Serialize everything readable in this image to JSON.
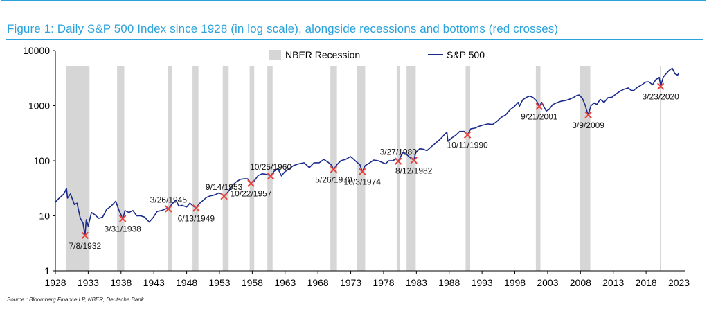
{
  "title": "Figure 1: Daily S&P 500 Index since 1928 (in log scale), alongside recessions and bottoms (red crosses)",
  "source": "Source : Bloomberg Finance LP, NBER, Deutsche Bank",
  "colors": {
    "accent": "#2aa3dc",
    "series": "#1a2a8c",
    "recession": "#d6d6d6",
    "bottom": "#e8413b"
  },
  "chart_data": {
    "type": "line",
    "yscale": "log",
    "ylim": [
      1,
      10000
    ],
    "xlim": [
      1928,
      2024
    ],
    "y_ticks": [
      {
        "value": 1,
        "label": "1"
      },
      {
        "value": 10,
        "label": "10"
      },
      {
        "value": 100,
        "label": "100"
      },
      {
        "value": 1000,
        "label": "1000"
      },
      {
        "value": 10000,
        "label": "10000"
      }
    ],
    "x_ticks": [
      "1928",
      "1933",
      "1938",
      "1943",
      "1948",
      "1953",
      "1958",
      "1963",
      "1968",
      "1973",
      "1978",
      "1983",
      "1988",
      "1993",
      "1998",
      "2003",
      "2008",
      "2013",
      "2018",
      "2023"
    ],
    "legend": {
      "placement": "top-center",
      "recession_label": "NBER Recession",
      "series_label": "S&P 500"
    },
    "recessions": [
      [
        1929.6,
        1933.2
      ],
      [
        1937.4,
        1938.5
      ],
      [
        1945.1,
        1945.8
      ],
      [
        1948.9,
        1949.8
      ],
      [
        1953.5,
        1954.4
      ],
      [
        1957.6,
        1958.3
      ],
      [
        1960.3,
        1961.1
      ],
      [
        1969.9,
        1970.9
      ],
      [
        1973.9,
        1975.2
      ],
      [
        1980.0,
        1980.5
      ],
      [
        1981.5,
        1982.9
      ],
      [
        1990.5,
        1991.2
      ],
      [
        2001.2,
        2001.9
      ],
      [
        2007.9,
        2009.5
      ],
      [
        2020.1,
        2020.3
      ]
    ],
    "series": [
      {
        "name": "S&P 500",
        "points": [
          [
            1928.0,
            17.7
          ],
          [
            1928.5,
            20.5
          ],
          [
            1929.3,
            25
          ],
          [
            1929.7,
            31.5
          ],
          [
            1929.85,
            21
          ],
          [
            1930.3,
            25
          ],
          [
            1930.9,
            16
          ],
          [
            1931.3,
            17
          ],
          [
            1931.8,
            9
          ],
          [
            1932.2,
            7.5
          ],
          [
            1932.52,
            4.4
          ],
          [
            1932.7,
            8.5
          ],
          [
            1933.0,
            6.5
          ],
          [
            1933.5,
            11.5
          ],
          [
            1934.0,
            10.5
          ],
          [
            1934.6,
            9
          ],
          [
            1935.2,
            9.5
          ],
          [
            1935.8,
            13
          ],
          [
            1936.5,
            15
          ],
          [
            1937.2,
            18.5
          ],
          [
            1937.7,
            12.5
          ],
          [
            1938.0,
            10.5
          ],
          [
            1938.25,
            8.5
          ],
          [
            1938.6,
            12.5
          ],
          [
            1939.2,
            11.5
          ],
          [
            1939.8,
            12.5
          ],
          [
            1940.4,
            10
          ],
          [
            1941.0,
            10
          ],
          [
            1941.6,
            9.5
          ],
          [
            1942.3,
            7.7
          ],
          [
            1942.9,
            9.3
          ],
          [
            1943.5,
            12
          ],
          [
            1944.2,
            12.5
          ],
          [
            1944.9,
            13.5
          ],
          [
            1945.23,
            13.5
          ],
          [
            1945.8,
            16.5
          ],
          [
            1946.4,
            19.3
          ],
          [
            1946.8,
            15
          ],
          [
            1947.3,
            15.5
          ],
          [
            1948.0,
            14.5
          ],
          [
            1948.5,
            17
          ],
          [
            1949.0,
            15
          ],
          [
            1949.45,
            13.8
          ],
          [
            1949.9,
            16.5
          ],
          [
            1950.5,
            19
          ],
          [
            1951.0,
            21.5
          ],
          [
            1951.6,
            23
          ],
          [
            1952.3,
            24
          ],
          [
            1952.9,
            26
          ],
          [
            1953.3,
            25
          ],
          [
            1953.7,
            23
          ],
          [
            1954.3,
            27
          ],
          [
            1954.9,
            35
          ],
          [
            1955.5,
            41
          ],
          [
            1956.2,
            46
          ],
          [
            1956.8,
            47
          ],
          [
            1957.3,
            47
          ],
          [
            1957.8,
            39
          ],
          [
            1958.3,
            43
          ],
          [
            1958.9,
            54
          ],
          [
            1959.5,
            58
          ],
          [
            1960.0,
            57
          ],
          [
            1960.5,
            55
          ],
          [
            1960.82,
            53
          ],
          [
            1961.3,
            64
          ],
          [
            1961.9,
            72
          ],
          [
            1962.45,
            53
          ],
          [
            1962.9,
            62
          ],
          [
            1963.5,
            70
          ],
          [
            1964.3,
            82
          ],
          [
            1965.1,
            88
          ],
          [
            1965.9,
            92
          ],
          [
            1966.7,
            75
          ],
          [
            1967.4,
            92
          ],
          [
            1968.2,
            92
          ],
          [
            1968.9,
            106
          ],
          [
            1969.5,
            95
          ],
          [
            1970.0,
            85
          ],
          [
            1970.4,
            70
          ],
          [
            1970.9,
            85
          ],
          [
            1971.5,
            100
          ],
          [
            1972.3,
            107
          ],
          [
            1972.95,
            119
          ],
          [
            1973.5,
            105
          ],
          [
            1973.9,
            95
          ],
          [
            1974.4,
            85
          ],
          [
            1974.76,
            63
          ],
          [
            1975.2,
            82
          ],
          [
            1975.8,
            90
          ],
          [
            1976.5,
            103
          ],
          [
            1977.2,
            100
          ],
          [
            1977.9,
            92
          ],
          [
            1978.3,
            88
          ],
          [
            1978.8,
            100
          ],
          [
            1979.4,
            100
          ],
          [
            1979.9,
            108
          ],
          [
            1980.24,
            98
          ],
          [
            1980.7,
            125
          ],
          [
            1980.95,
            140
          ],
          [
            1981.5,
            130
          ],
          [
            1982.0,
            115
          ],
          [
            1982.61,
            102
          ],
          [
            1982.9,
            140
          ],
          [
            1983.5,
            165
          ],
          [
            1984.0,
            162
          ],
          [
            1984.6,
            152
          ],
          [
            1985.3,
            180
          ],
          [
            1985.95,
            210
          ],
          [
            1986.6,
            245
          ],
          [
            1987.3,
            300
          ],
          [
            1987.65,
            330
          ],
          [
            1987.8,
            225
          ],
          [
            1988.4,
            260
          ],
          [
            1989.0,
            290
          ],
          [
            1989.6,
            340
          ],
          [
            1990.3,
            340
          ],
          [
            1990.78,
            295
          ],
          [
            1991.3,
            380
          ],
          [
            1991.9,
            390
          ],
          [
            1992.5,
            420
          ],
          [
            1993.2,
            445
          ],
          [
            1993.9,
            465
          ],
          [
            1994.6,
            455
          ],
          [
            1995.3,
            520
          ],
          [
            1995.9,
            610
          ],
          [
            1996.6,
            680
          ],
          [
            1997.3,
            850
          ],
          [
            1997.9,
            960
          ],
          [
            1998.5,
            1150
          ],
          [
            1998.7,
            980
          ],
          [
            1999.2,
            1280
          ],
          [
            1999.8,
            1420
          ],
          [
            2000.3,
            1500
          ],
          [
            2000.8,
            1400
          ],
          [
            2001.3,
            1230
          ],
          [
            2001.72,
            965
          ],
          [
            2002.1,
            1150
          ],
          [
            2002.5,
            920
          ],
          [
            2002.8,
            800
          ],
          [
            2003.2,
            850
          ],
          [
            2003.8,
            1050
          ],
          [
            2004.4,
            1130
          ],
          [
            2005.0,
            1200
          ],
          [
            2005.7,
            1240
          ],
          [
            2006.3,
            1300
          ],
          [
            2006.9,
            1400
          ],
          [
            2007.4,
            1520
          ],
          [
            2007.8,
            1560
          ],
          [
            2008.3,
            1350
          ],
          [
            2008.75,
            1000
          ],
          [
            2008.9,
            850
          ],
          [
            2009.19,
            680
          ],
          [
            2009.6,
            1000
          ],
          [
            2010.1,
            1120
          ],
          [
            2010.5,
            1050
          ],
          [
            2011.0,
            1300
          ],
          [
            2011.6,
            1150
          ],
          [
            2012.2,
            1400
          ],
          [
            2012.8,
            1420
          ],
          [
            2013.4,
            1620
          ],
          [
            2014.0,
            1820
          ],
          [
            2014.6,
            1980
          ],
          [
            2015.3,
            2100
          ],
          [
            2015.7,
            1900
          ],
          [
            2016.1,
            1880
          ],
          [
            2016.7,
            2170
          ],
          [
            2017.3,
            2380
          ],
          [
            2017.9,
            2670
          ],
          [
            2018.4,
            2720
          ],
          [
            2018.98,
            2400
          ],
          [
            2019.5,
            2980
          ],
          [
            2020.0,
            3260
          ],
          [
            2020.22,
            2240
          ],
          [
            2020.6,
            3300
          ],
          [
            2021.0,
            3750
          ],
          [
            2021.5,
            4350
          ],
          [
            2021.99,
            4780
          ],
          [
            2022.4,
            3800
          ],
          [
            2022.8,
            3580
          ],
          [
            2023.0,
            3950
          ]
        ]
      }
    ],
    "bottoms": [
      {
        "x": 1932.52,
        "y": 4.4,
        "label": "7/8/1932",
        "pos": "below"
      },
      {
        "x": 1938.25,
        "y": 8.9,
        "label": "3/31/1938",
        "pos": "below"
      },
      {
        "x": 1945.23,
        "y": 13.4,
        "label": "3/26/1945",
        "pos": "above"
      },
      {
        "x": 1949.45,
        "y": 13.8,
        "label": "6/13/1949",
        "pos": "below"
      },
      {
        "x": 1953.7,
        "y": 22.7,
        "label": "9/14/1953",
        "pos": "above"
      },
      {
        "x": 1957.8,
        "y": 39,
        "label": "10/22/1957",
        "pos": "below"
      },
      {
        "x": 1960.82,
        "y": 52.5,
        "label": "10/25/1960",
        "pos": "above"
      },
      {
        "x": 1970.4,
        "y": 69.5,
        "label": "5/26/1970",
        "pos": "below"
      },
      {
        "x": 1974.76,
        "y": 63.5,
        "label": "10/3/1974",
        "pos": "below"
      },
      {
        "x": 1980.24,
        "y": 98,
        "label": "3/27/1980",
        "pos": "above"
      },
      {
        "x": 1982.61,
        "y": 102,
        "label": "8/12/1982",
        "pos": "below"
      },
      {
        "x": 1990.78,
        "y": 295,
        "label": "10/11/1990",
        "pos": "below"
      },
      {
        "x": 2001.72,
        "y": 965,
        "label": "9/21/2001",
        "pos": "below"
      },
      {
        "x": 2009.19,
        "y": 680,
        "label": "3/9/2009",
        "pos": "below"
      },
      {
        "x": 2020.22,
        "y": 2240,
        "label": "3/23/2020",
        "pos": "below"
      }
    ]
  }
}
